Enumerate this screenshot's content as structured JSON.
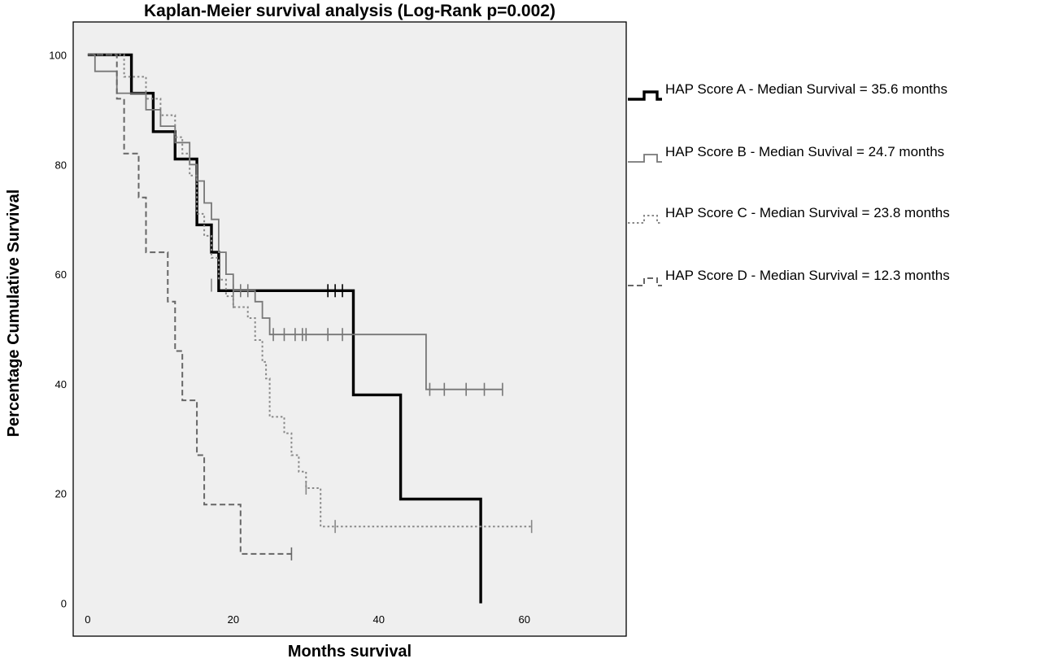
{
  "chart_data": {
    "type": "line",
    "subtype": "step",
    "title": "Kaplan-Meier survival analysis (Log-Rank p=0.002)",
    "xlabel": "Months survival",
    "ylabel": "Percentage Cumulative Survival",
    "xlim": [
      -2,
      74
    ],
    "ylim": [
      -6,
      106
    ],
    "xticks": [
      "0",
      "20",
      "40",
      "60"
    ],
    "yticks": [
      "0",
      "20",
      "40",
      "60",
      "80",
      "100"
    ],
    "grid": false,
    "legend_position": "right",
    "plot_background": "#efefef",
    "series": [
      {
        "name": "HAP Score A - Median Survival = 35.6 months",
        "style": "solid-thick",
        "color": "#000000",
        "steps": [
          [
            0,
            100
          ],
          [
            6,
            100
          ],
          [
            6,
            93
          ],
          [
            9,
            93
          ],
          [
            9,
            86
          ],
          [
            12,
            86
          ],
          [
            12,
            81
          ],
          [
            15,
            81
          ],
          [
            15,
            69
          ],
          [
            17,
            69
          ],
          [
            17,
            64
          ],
          [
            18,
            64
          ],
          [
            18,
            57
          ],
          [
            36.5,
            57
          ],
          [
            36.5,
            38
          ],
          [
            43,
            38
          ],
          [
            43,
            19
          ],
          [
            54,
            19
          ],
          [
            54,
            0
          ]
        ],
        "censored": [
          [
            33,
            57
          ],
          [
            34,
            57
          ],
          [
            35,
            57
          ]
        ]
      },
      {
        "name": "HAP Score B - Median Suvival =  24.7 months",
        "style": "solid-thin",
        "color": "#777777",
        "steps": [
          [
            0,
            100
          ],
          [
            1,
            100
          ],
          [
            1,
            97
          ],
          [
            4,
            97
          ],
          [
            4,
            93
          ],
          [
            8,
            93
          ],
          [
            8,
            90
          ],
          [
            10,
            90
          ],
          [
            10,
            87
          ],
          [
            12,
            87
          ],
          [
            12,
            84
          ],
          [
            14,
            84
          ],
          [
            14,
            80
          ],
          [
            15,
            80
          ],
          [
            15,
            77
          ],
          [
            16,
            77
          ],
          [
            16,
            73
          ],
          [
            17,
            73
          ],
          [
            17,
            70
          ],
          [
            18,
            70
          ],
          [
            18,
            64
          ],
          [
            19,
            64
          ],
          [
            19,
            60
          ],
          [
            20,
            60
          ],
          [
            20,
            57
          ],
          [
            23,
            57
          ],
          [
            23,
            55
          ],
          [
            24,
            55
          ],
          [
            24,
            52
          ],
          [
            25,
            52
          ],
          [
            25,
            49
          ],
          [
            46.5,
            49
          ],
          [
            46.5,
            39
          ],
          [
            57,
            39
          ]
        ],
        "censored": [
          [
            20,
            57
          ],
          [
            21,
            57
          ],
          [
            22,
            57
          ],
          [
            25.5,
            49
          ],
          [
            27,
            49
          ],
          [
            28.5,
            49
          ],
          [
            29.5,
            49
          ],
          [
            30,
            49
          ],
          [
            33,
            49
          ],
          [
            35,
            49
          ],
          [
            47,
            39
          ],
          [
            49,
            39
          ],
          [
            52,
            39
          ],
          [
            54.5,
            39
          ],
          [
            57,
            39
          ]
        ]
      },
      {
        "name": "HAP Score C - Median Survival = 23.8 months",
        "style": "dotted",
        "color": "#888888",
        "steps": [
          [
            0,
            100
          ],
          [
            5,
            100
          ],
          [
            5,
            96
          ],
          [
            8,
            96
          ],
          [
            8,
            92
          ],
          [
            10,
            92
          ],
          [
            10,
            89
          ],
          [
            12,
            89
          ],
          [
            12,
            85
          ],
          [
            13,
            85
          ],
          [
            13,
            82
          ],
          [
            14,
            82
          ],
          [
            14,
            78
          ],
          [
            15,
            78
          ],
          [
            15,
            71
          ],
          [
            16,
            71
          ],
          [
            16,
            67
          ],
          [
            17,
            67
          ],
          [
            17,
            63
          ],
          [
            18,
            63
          ],
          [
            18,
            59
          ],
          [
            19,
            59
          ],
          [
            19,
            56
          ],
          [
            20,
            56
          ],
          [
            20,
            54
          ],
          [
            22,
            54
          ],
          [
            22,
            52
          ],
          [
            23,
            52
          ],
          [
            23,
            48
          ],
          [
            24,
            48
          ],
          [
            24,
            44
          ],
          [
            24.5,
            44
          ],
          [
            24.5,
            41
          ],
          [
            25,
            41
          ],
          [
            25,
            34
          ],
          [
            27,
            34
          ],
          [
            27,
            31
          ],
          [
            28,
            31
          ],
          [
            28,
            27
          ],
          [
            29,
            27
          ],
          [
            29,
            24
          ],
          [
            30,
            24
          ],
          [
            30,
            21
          ],
          [
            32,
            21
          ],
          [
            32,
            14
          ],
          [
            61,
            14
          ]
        ],
        "censored": [
          [
            17,
            58
          ],
          [
            20,
            55
          ],
          [
            30,
            21
          ],
          [
            34,
            14
          ],
          [
            61,
            14
          ]
        ]
      },
      {
        "name": "HAP Score D - Median Survival =  12.3 months",
        "style": "dashed",
        "color": "#666666",
        "steps": [
          [
            0,
            100
          ],
          [
            4,
            100
          ],
          [
            4,
            92
          ],
          [
            5,
            92
          ],
          [
            5,
            82
          ],
          [
            7,
            82
          ],
          [
            7,
            74
          ],
          [
            8,
            74
          ],
          [
            8,
            64
          ],
          [
            11,
            64
          ],
          [
            11,
            55
          ],
          [
            12,
            55
          ],
          [
            12,
            46
          ],
          [
            13,
            46
          ],
          [
            13,
            37
          ],
          [
            15,
            37
          ],
          [
            15,
            27
          ],
          [
            16,
            27
          ],
          [
            16,
            18
          ],
          [
            21,
            18
          ],
          [
            21,
            9
          ],
          [
            28,
            9
          ]
        ],
        "censored": [
          [
            28,
            9
          ]
        ]
      }
    ]
  }
}
